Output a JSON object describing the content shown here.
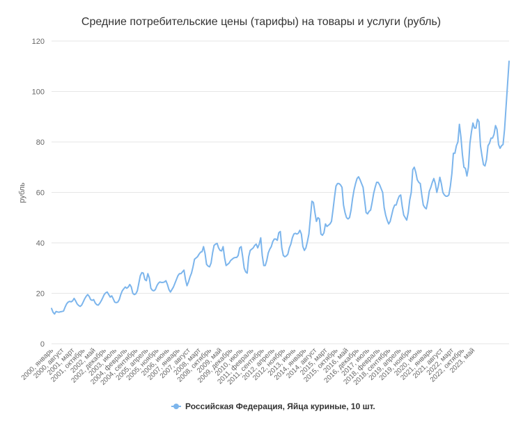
{
  "colors": {
    "series": "#7cb5ec",
    "grid": "#e6e6e6",
    "text": "#333333",
    "axis_text": "#666666"
  },
  "chart_data": {
    "type": "line",
    "title": "Средние потребительские цены (тарифы) на товары и услуги (рубль)",
    "xlabel": "",
    "ylabel": "рубль",
    "ylim": [
      0,
      120
    ],
    "yticks": [
      0,
      20,
      40,
      60,
      80,
      100,
      120
    ],
    "grid": true,
    "legend_position": "bottom-center",
    "x_tick_labels": [
      "2000, январь",
      "2000, август",
      "2001, март",
      "2001, октябрь",
      "2002, май",
      "2002, декабрь",
      "2003, июль",
      "2004, февраль",
      "2004, сентябрь",
      "2005, апрель",
      "2005, ноябрь",
      "2006, июнь",
      "2007, январь",
      "2007, август",
      "2008, март",
      "2008, октябрь",
      "2009, май",
      "2009, декабрь",
      "2010, июль",
      "2011, февраль",
      "2011, сентябрь",
      "2012, апрель",
      "2012, ноябрь",
      "2013, июнь",
      "2014, январь",
      "2014, август",
      "2015, март",
      "2015, октябрь",
      "2016, май",
      "2016, декабрь",
      "2017, июль",
      "2018, февраль",
      "2018, сентябрь",
      "2019, апрель",
      "2019, ноябрь",
      "2020, июнь",
      "2021, январь",
      "2021, август",
      "2022, март",
      "2022, октябрь",
      "2023, май"
    ],
    "series": [
      {
        "name": "Российская Федерация, Яйца куриные, 10 шт.",
        "color": "#7cb5ec",
        "x_start": "2000-01",
        "x_step": "month",
        "values": [
          14.0,
          12.5,
          11.8,
          12.8,
          12.6,
          12.5,
          12.7,
          12.8,
          13.0,
          14.5,
          15.8,
          16.5,
          16.8,
          16.6,
          17.0,
          18.0,
          17.0,
          15.8,
          15.2,
          14.8,
          15.3,
          16.5,
          17.8,
          18.8,
          19.5,
          18.8,
          17.5,
          17.2,
          17.5,
          16.2,
          15.5,
          15.3,
          16.0,
          17.0,
          18.2,
          19.5,
          20.2,
          20.5,
          19.5,
          18.5,
          19.0,
          17.8,
          16.5,
          16.3,
          16.5,
          17.5,
          19.5,
          21.0,
          21.8,
          22.5,
          22.0,
          22.5,
          23.5,
          22.5,
          20.0,
          19.5,
          19.8,
          21.0,
          24.0,
          27.0,
          28.2,
          28.0,
          25.5,
          25.0,
          27.8,
          26.0,
          22.0,
          21.2,
          21.0,
          21.5,
          23.0,
          24.0,
          24.5,
          24.3,
          24.3,
          24.5,
          25.0,
          23.5,
          21.5,
          20.5,
          21.5,
          22.5,
          24.0,
          25.5,
          27.0,
          27.8,
          27.8,
          28.5,
          29.2,
          25.5,
          23.0,
          24.5,
          26.5,
          28.0,
          30.5,
          33.5,
          34.0,
          34.5,
          35.5,
          36.3,
          36.5,
          38.5,
          35.8,
          31.5,
          30.8,
          30.5,
          32.0,
          36.0,
          39.0,
          39.5,
          39.8,
          38.0,
          37.0,
          36.8,
          38.5,
          34.0,
          31.0,
          31.5,
          32.0,
          33.0,
          33.5,
          34.0,
          34.2,
          34.2,
          35.0,
          38.0,
          38.5,
          34.5,
          30.0,
          28.5,
          28.0,
          34.5,
          37.0,
          37.5,
          38.0,
          39.0,
          39.5,
          38.0,
          39.5,
          42.0,
          35.0,
          31.0,
          31.0,
          33.0,
          36.0,
          37.5,
          38.5,
          40.5,
          41.5,
          41.5,
          41.0,
          44.0,
          44.5,
          38.0,
          35.0,
          34.5,
          34.8,
          35.5,
          38.0,
          39.5,
          42.0,
          43.5,
          43.8,
          43.5,
          43.8,
          45.0,
          43.5,
          38.5,
          37.0,
          38.0,
          40.5,
          43.5,
          50.0,
          56.5,
          56.0,
          52.0,
          48.5,
          50.0,
          49.5,
          43.5,
          43.0,
          44.0,
          47.5,
          46.5,
          47.0,
          47.5,
          48.5,
          53.0,
          58.0,
          62.5,
          63.5,
          63.5,
          63.0,
          62.0,
          55.0,
          52.0,
          50.0,
          49.5,
          50.0,
          53.0,
          57.5,
          61.0,
          63.5,
          65.5,
          66.2,
          65.0,
          63.5,
          62.0,
          57.0,
          52.0,
          51.5,
          52.5,
          53.0,
          56.0,
          59.5,
          62.0,
          64.0,
          64.0,
          63.0,
          61.5,
          60.0,
          54.0,
          51.0,
          49.0,
          47.5,
          48.5,
          51.0,
          53.5,
          55.0,
          55.0,
          57.0,
          58.5,
          59.0,
          54.5,
          51.0,
          50.0,
          49.0,
          52.0,
          57.0,
          60.0,
          69.0,
          70.0,
          68.0,
          65.0,
          64.0,
          63.5,
          59.0,
          55.0,
          54.0,
          53.5,
          56.5,
          60.5,
          62.0,
          64.0,
          65.5,
          63.5,
          60.0,
          62.5,
          66.0,
          63.5,
          60.0,
          59.0,
          58.5,
          58.5,
          59.0,
          62.5,
          67.5,
          75.5,
          75.5,
          78.5,
          80.0,
          87.0,
          82.0,
          75.0,
          70.0,
          69.5,
          66.5,
          70.0,
          79.5,
          84.0,
          87.5,
          85.5,
          85.5,
          89.0,
          88.0,
          78.5,
          74.5,
          71.0,
          70.5,
          73.0,
          78.5,
          79.5,
          81.5,
          81.5,
          83.0,
          86.5,
          85.0,
          79.0,
          77.5,
          78.5,
          79.0,
          85.0,
          94.0,
          103.0,
          112.0
        ]
      }
    ]
  }
}
